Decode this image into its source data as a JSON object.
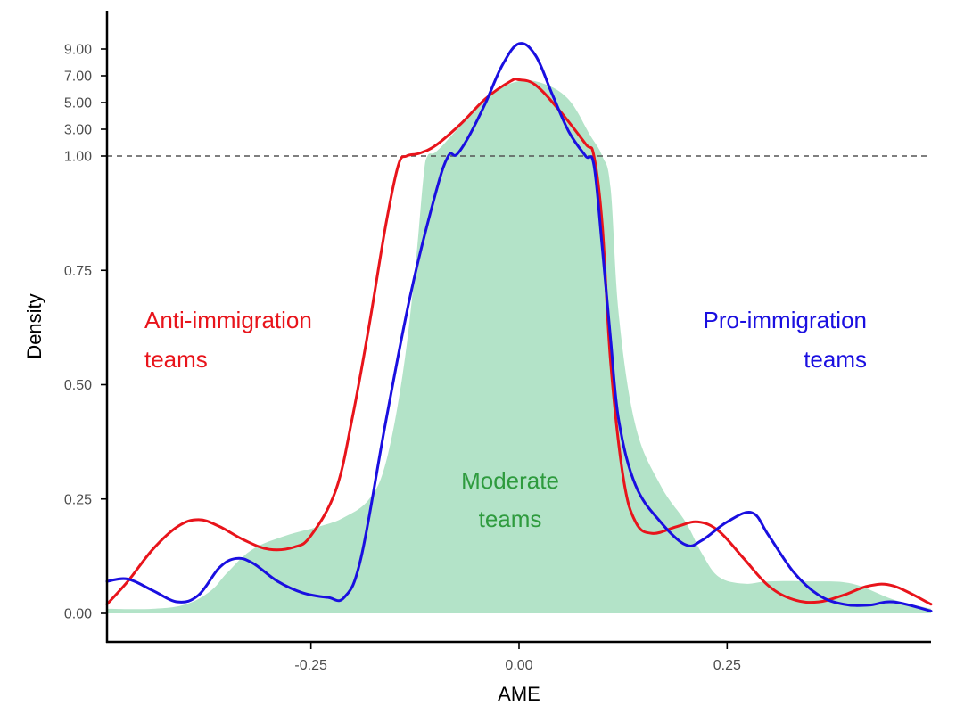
{
  "chart_data": {
    "type": "area",
    "title": "",
    "xlabel": "AME",
    "ylabel": "Density",
    "xlim": [
      -0.495,
      0.495
    ],
    "x_ticks": [
      -0.25,
      0.0,
      0.25
    ],
    "x_tick_labels": [
      "-0.25",
      "0.00",
      "0.25"
    ],
    "y_scale_note": "piecewise: linear 0-1, compressed above 1",
    "y_ticks": [
      0.0,
      0.25,
      0.5,
      0.75,
      1.0,
      3.0,
      5.0,
      7.0,
      9.0
    ],
    "y_tick_labels": [
      "0.00",
      "0.25",
      "0.50",
      "0.75",
      "1.00",
      "3.00",
      "5.00",
      "7.00",
      "9.00"
    ],
    "reference_line": {
      "y": 1.0,
      "style": "dashed"
    },
    "grid": false,
    "legend": "none",
    "series": [
      {
        "role": "moderate",
        "style": "filled",
        "color": "#b3e3c8",
        "x": [
          -0.495,
          -0.44,
          -0.4,
          -0.37,
          -0.35,
          -0.32,
          -0.28,
          -0.24,
          -0.21,
          -0.18,
          -0.16,
          -0.14,
          -0.125,
          -0.115,
          -0.11,
          -0.1,
          -0.08,
          -0.05,
          -0.03,
          0.0,
          0.03,
          0.06,
          0.085,
          0.1,
          0.11,
          0.12,
          0.14,
          0.17,
          0.2,
          0.22,
          0.24,
          0.27,
          0.3,
          0.35,
          0.4,
          0.45,
          0.495
        ],
        "y": [
          0.01,
          0.01,
          0.02,
          0.05,
          0.09,
          0.14,
          0.17,
          0.19,
          0.21,
          0.25,
          0.33,
          0.52,
          0.75,
          0.95,
          1.0,
          1.3,
          2.6,
          4.7,
          5.8,
          6.6,
          6.4,
          5.2,
          2.6,
          1.0,
          0.93,
          0.65,
          0.41,
          0.28,
          0.2,
          0.13,
          0.08,
          0.065,
          0.07,
          0.07,
          0.065,
          0.03,
          0.01
        ]
      },
      {
        "role": "anti-immigration",
        "style": "line",
        "color": "#e8141b",
        "x": [
          -0.495,
          -0.47,
          -0.44,
          -0.41,
          -0.385,
          -0.36,
          -0.33,
          -0.3,
          -0.27,
          -0.25,
          -0.22,
          -0.2,
          -0.18,
          -0.16,
          -0.145,
          -0.135,
          -0.12,
          -0.1,
          -0.07,
          -0.04,
          -0.01,
          0.0,
          0.02,
          0.05,
          0.08,
          0.09,
          0.1,
          0.11,
          0.125,
          0.14,
          0.16,
          0.19,
          0.215,
          0.24,
          0.27,
          0.3,
          0.33,
          0.36,
          0.39,
          0.42,
          0.45,
          0.495
        ],
        "y": [
          0.02,
          0.07,
          0.14,
          0.19,
          0.205,
          0.19,
          0.16,
          0.14,
          0.145,
          0.17,
          0.27,
          0.43,
          0.63,
          0.85,
          0.98,
          1.0,
          1.2,
          1.8,
          3.4,
          5.3,
          6.6,
          6.7,
          6.3,
          4.3,
          1.9,
          1.0,
          0.85,
          0.55,
          0.3,
          0.2,
          0.175,
          0.19,
          0.2,
          0.18,
          0.12,
          0.06,
          0.03,
          0.025,
          0.04,
          0.06,
          0.06,
          0.02
        ]
      },
      {
        "role": "pro-immigration",
        "style": "line",
        "color": "#1a0fe0",
        "x": [
          -0.495,
          -0.47,
          -0.44,
          -0.41,
          -0.385,
          -0.36,
          -0.34,
          -0.32,
          -0.29,
          -0.26,
          -0.23,
          -0.21,
          -0.19,
          -0.16,
          -0.13,
          -0.1,
          -0.085,
          -0.075,
          -0.06,
          -0.04,
          -0.02,
          0.0,
          0.02,
          0.04,
          0.06,
          0.08,
          0.09,
          0.1,
          0.11,
          0.12,
          0.14,
          0.17,
          0.2,
          0.22,
          0.25,
          0.28,
          0.3,
          0.33,
          0.36,
          0.39,
          0.42,
          0.45,
          0.495
        ],
        "y": [
          0.07,
          0.075,
          0.05,
          0.025,
          0.04,
          0.1,
          0.12,
          0.11,
          0.07,
          0.045,
          0.035,
          0.035,
          0.12,
          0.42,
          0.7,
          0.92,
          1.0,
          1.1,
          2.5,
          5.0,
          7.8,
          9.4,
          8.5,
          5.6,
          2.8,
          1.0,
          0.98,
          0.8,
          0.6,
          0.42,
          0.28,
          0.2,
          0.15,
          0.16,
          0.2,
          0.22,
          0.17,
          0.09,
          0.04,
          0.02,
          0.018,
          0.025,
          0.005
        ]
      }
    ],
    "annotations": [
      {
        "key": "anti_line1",
        "text": "Anti-immigration",
        "color": "#e8141b"
      },
      {
        "key": "anti_line2",
        "text": "teams",
        "color": "#e8141b"
      },
      {
        "key": "pro_line1",
        "text": "Pro-immigration",
        "color": "#1a0fe0"
      },
      {
        "key": "pro_line2",
        "text": "teams",
        "color": "#1a0fe0"
      },
      {
        "key": "mod_line1",
        "text": "Moderate",
        "color": "#2e9b3e"
      },
      {
        "key": "mod_line2",
        "text": "teams",
        "color": "#2e9b3e"
      }
    ]
  }
}
